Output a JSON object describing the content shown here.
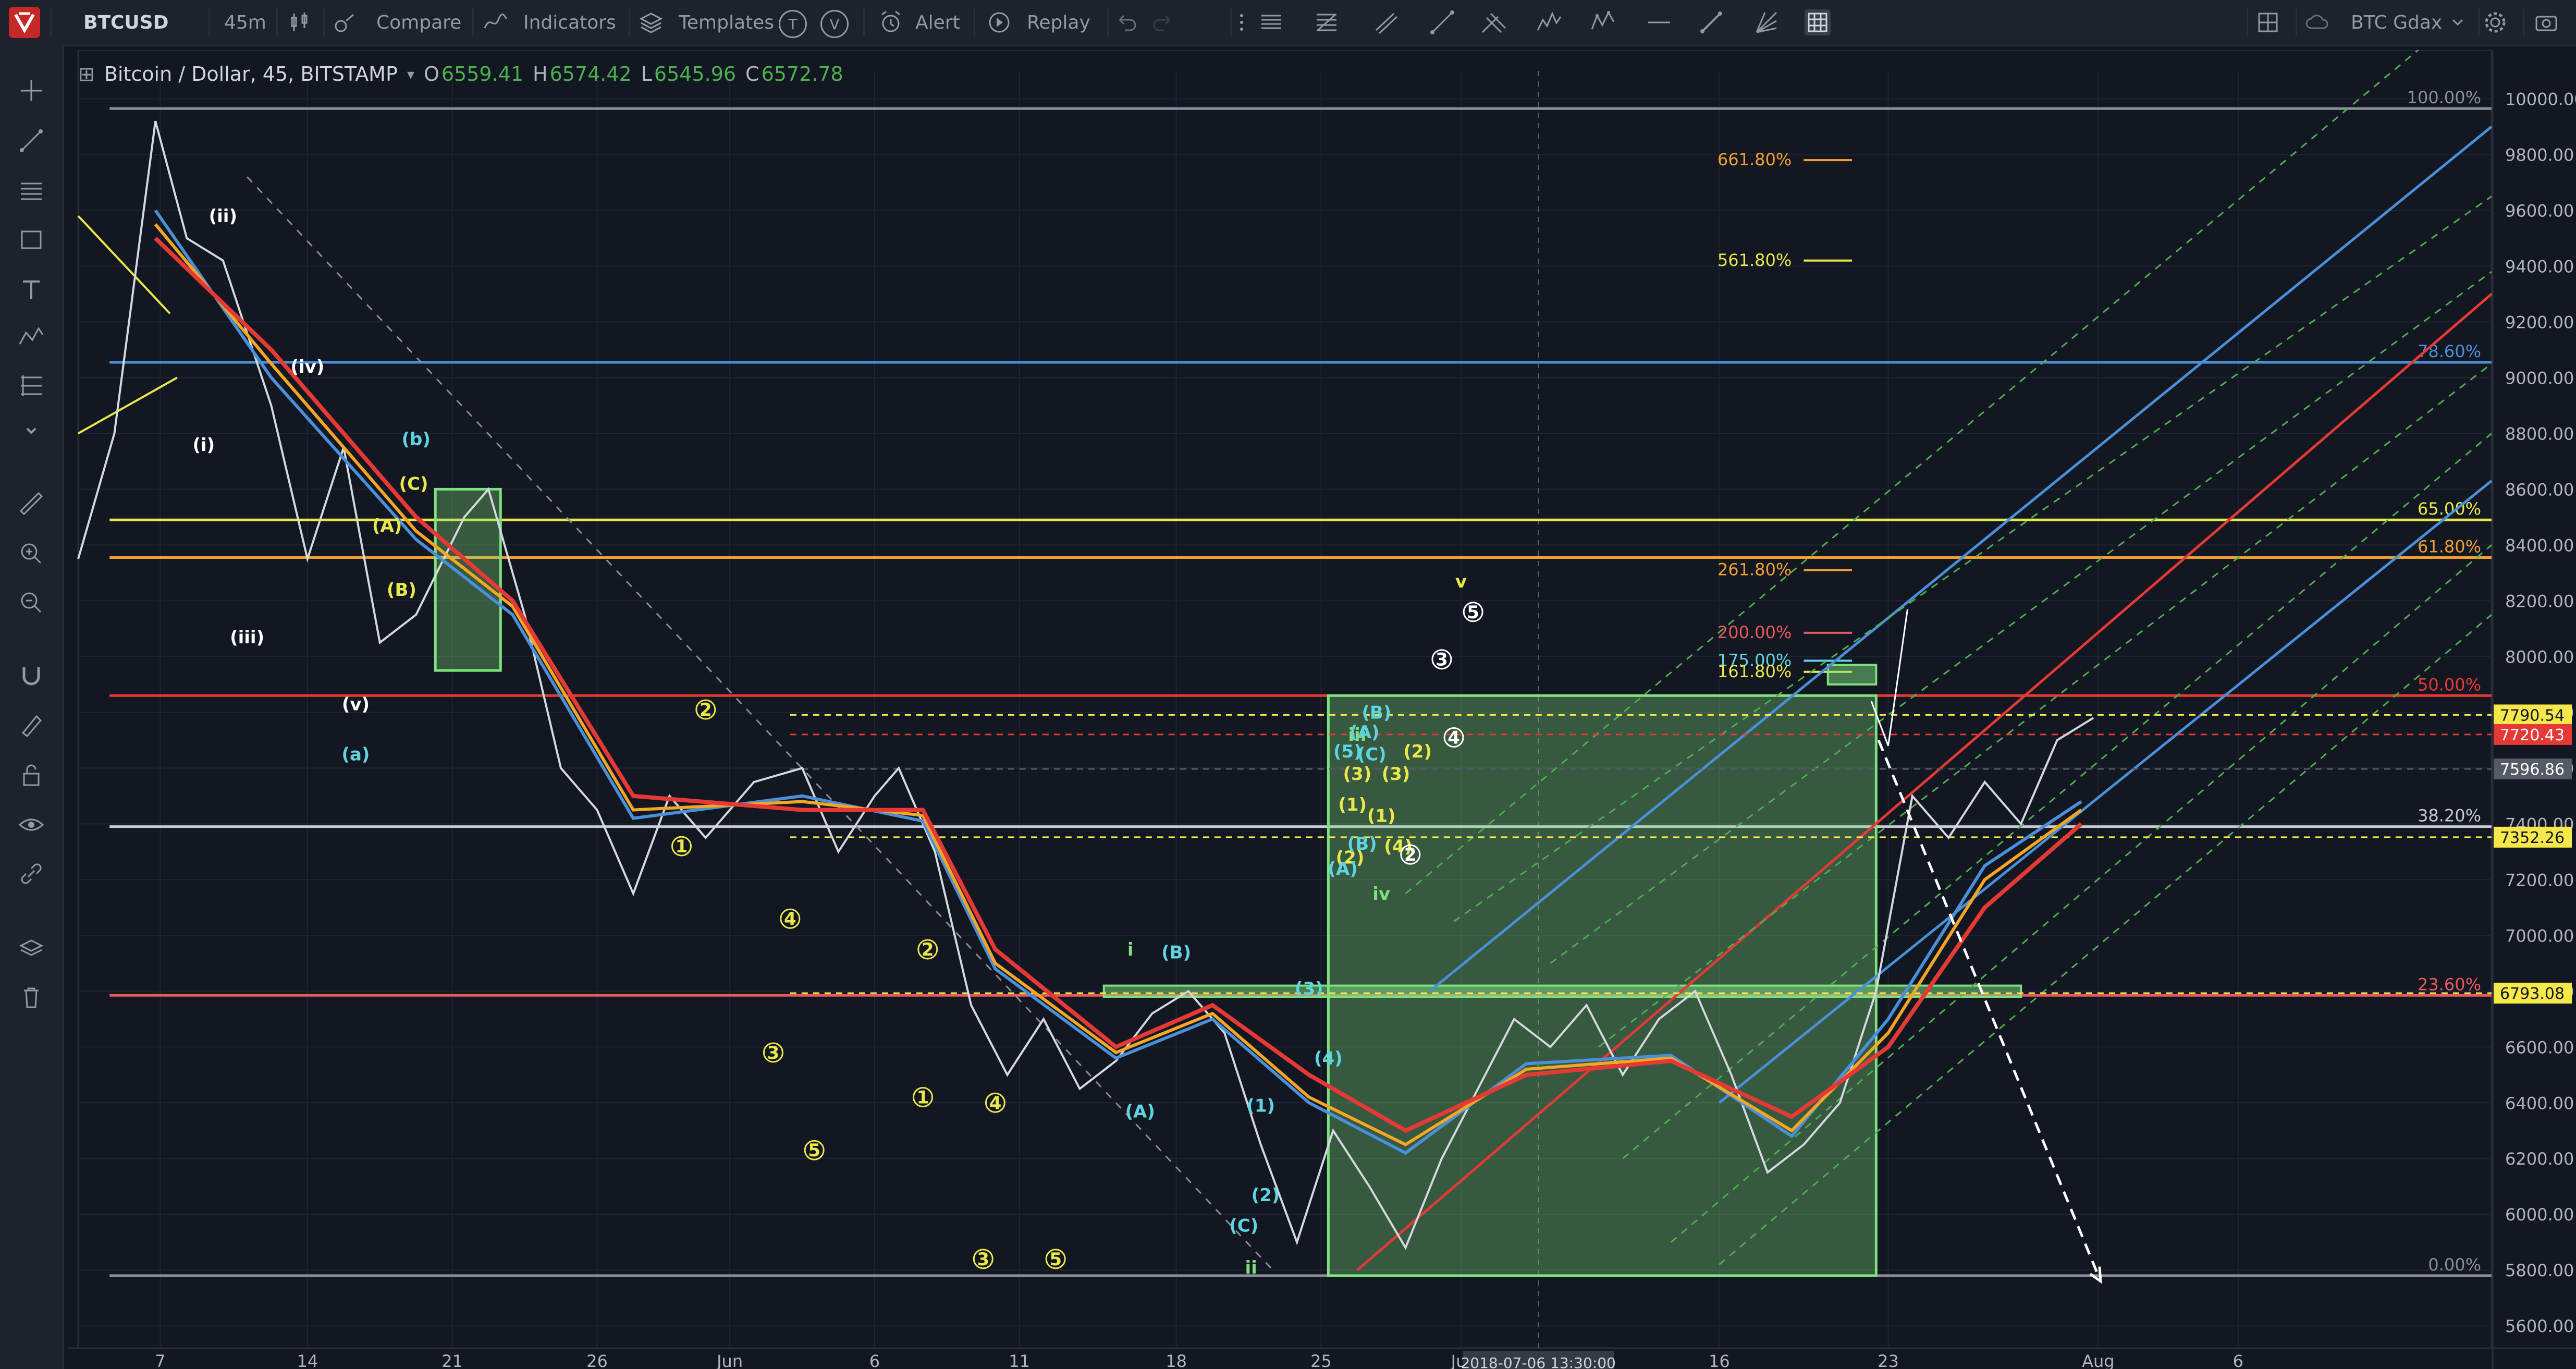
{
  "toolbar": {
    "symbol": "BTCUSD",
    "interval": "45m",
    "compare": "Compare",
    "indicators": "Indicators",
    "templates": "Templates",
    "templates_badge_t": "T",
    "templates_badge_v": "V",
    "alert": "Alert",
    "replay": "Replay",
    "layout_name": "BTC Gdax"
  },
  "legend": {
    "title": "Bitcoin / Dollar, 45, BITSTAMP",
    "open_label": "O",
    "open": "6559.41",
    "high_label": "H",
    "high": "6574.42",
    "low_label": "L",
    "low": "6545.96",
    "close_label": "C",
    "close": "6572.78"
  },
  "colors": {
    "background": "#131722",
    "panel": "#1e222d",
    "candle": "#d5d8de",
    "ema_red": "#e53935",
    "ema_orange": "#f5a623",
    "ema_blue": "#4a90d9",
    "fib_yellow": "#e8e84a",
    "fib_orange": "#f0a030",
    "green_box": "#7ee07e",
    "teal_label": "#5fd3e0",
    "price_tag_yellow": "#f7e84a"
  },
  "chart_data": {
    "type": "line",
    "title": "Bitcoin / Dollar, 45, BITSTAMP",
    "x_ticks": [
      "7",
      "14",
      "21",
      "26",
      "Jun",
      "6",
      "11",
      "18",
      "25",
      "Jul",
      "16",
      "23",
      "Aug",
      "6"
    ],
    "crosshair_time": "2018-07-06 13:30:00",
    "y_ticks": [
      "10000.00",
      "9800.00",
      "9600.00",
      "9400.00",
      "9200.00",
      "9000.00",
      "8800.00",
      "8600.00",
      "8400.00",
      "8200.00",
      "8000.00",
      "7800.00",
      "7600.00",
      "7400.00",
      "7200.00",
      "7000.00",
      "6800.00",
      "6600.00",
      "6400.00",
      "6200.00",
      "6000.00",
      "5800.00",
      "5600.00"
    ],
    "ylim": [
      5520,
      10100
    ],
    "price_tags": [
      {
        "label": "7790.54",
        "value": 7790.54,
        "color": "#f7e84a"
      },
      {
        "label": "7720.43",
        "value": 7720.43,
        "color": "#e53935"
      },
      {
        "label": "7596.86",
        "value": 7596.86,
        "color": "#555a66"
      },
      {
        "label": "7352.26",
        "value": 7352.26,
        "color": "#f7e84a"
      },
      {
        "label": "6793.08",
        "value": 6793.08,
        "color": "#f7e84a"
      }
    ],
    "fib_levels": [
      {
        "label": "100.00%",
        "value": 9965,
        "color": "#8a8e99"
      },
      {
        "label": "78.60%",
        "value": 9055,
        "color": "#4a90d9"
      },
      {
        "label": "65.00%",
        "value": 8490,
        "color": "#e8e84a"
      },
      {
        "label": "61.80%",
        "value": 8355,
        "color": "#f0a030"
      },
      {
        "label": "50.00%",
        "value": 7860,
        "color": "#e53935"
      },
      {
        "label": "38.20%",
        "value": 7390,
        "color": "#c8cad0"
      },
      {
        "label": "23.60%",
        "value": 6785,
        "color": "#e55a5a"
      },
      {
        "label": "0.00%",
        "value": 5780,
        "color": "#8a8e99"
      }
    ],
    "extension_levels": [
      {
        "label": "661.80%",
        "value": 9780,
        "color": "#f0a030"
      },
      {
        "label": "561.80%",
        "value": 9420,
        "color": "#e8e84a"
      },
      {
        "label": "261.80%",
        "value": 8310,
        "color": "#f0a030"
      },
      {
        "label": "200.00%",
        "value": 8085,
        "color": "#e55a5a"
      },
      {
        "label": "175.00%",
        "value": 7985,
        "color": "#5fd3e0"
      },
      {
        "label": "161.80%",
        "value": 7945,
        "color": "#e8e84a"
      }
    ],
    "price_path": [
      {
        "x": 0.0,
        "y": 8350
      },
      {
        "x": 1.5,
        "y": 8800
      },
      {
        "x": 3.2,
        "y": 9920
      },
      {
        "x": 4.5,
        "y": 9500
      },
      {
        "x": 6.0,
        "y": 9420
      },
      {
        "x": 8.0,
        "y": 8900
      },
      {
        "x": 9.5,
        "y": 8350
      },
      {
        "x": 11.0,
        "y": 8750
      },
      {
        "x": 12.5,
        "y": 8050
      },
      {
        "x": 14.0,
        "y": 8150
      },
      {
        "x": 16.0,
        "y": 8500
      },
      {
        "x": 17.0,
        "y": 8600
      },
      {
        "x": 18.5,
        "y": 8150
      },
      {
        "x": 20.0,
        "y": 7600
      },
      {
        "x": 21.5,
        "y": 7450
      },
      {
        "x": 23.0,
        "y": 7150
      },
      {
        "x": 24.5,
        "y": 7500
      },
      {
        "x": 26.0,
        "y": 7350
      },
      {
        "x": 28.0,
        "y": 7550
      },
      {
        "x": 30.0,
        "y": 7600
      },
      {
        "x": 31.5,
        "y": 7300
      },
      {
        "x": 33.0,
        "y": 7500
      },
      {
        "x": 34.0,
        "y": 7600
      },
      {
        "x": 35.5,
        "y": 7300
      },
      {
        "x": 37.0,
        "y": 6750
      },
      {
        "x": 38.5,
        "y": 6500
      },
      {
        "x": 40.0,
        "y": 6700
      },
      {
        "x": 41.5,
        "y": 6450
      },
      {
        "x": 43.0,
        "y": 6550
      },
      {
        "x": 44.5,
        "y": 6720
      },
      {
        "x": 46.0,
        "y": 6800
      },
      {
        "x": 47.5,
        "y": 6650
      },
      {
        "x": 49.0,
        "y": 6250
      },
      {
        "x": 50.5,
        "y": 5900
      },
      {
        "x": 52.0,
        "y": 6300
      },
      {
        "x": 53.5,
        "y": 6100
      },
      {
        "x": 55.0,
        "y": 5880
      },
      {
        "x": 56.5,
        "y": 6200
      },
      {
        "x": 58.0,
        "y": 6450
      },
      {
        "x": 59.5,
        "y": 6700
      },
      {
        "x": 61.0,
        "y": 6600
      },
      {
        "x": 62.5,
        "y": 6750
      },
      {
        "x": 64.0,
        "y": 6500
      },
      {
        "x": 65.5,
        "y": 6700
      },
      {
        "x": 67.0,
        "y": 6800
      },
      {
        "x": 68.5,
        "y": 6500
      },
      {
        "x": 70.0,
        "y": 6150
      },
      {
        "x": 71.5,
        "y": 6250
      },
      {
        "x": 73.0,
        "y": 6400
      },
      {
        "x": 74.5,
        "y": 6800
      },
      {
        "x": 76.0,
        "y": 7500
      },
      {
        "x": 77.5,
        "y": 7350
      },
      {
        "x": 79.0,
        "y": 7550
      },
      {
        "x": 80.5,
        "y": 7400
      },
      {
        "x": 82.0,
        "y": 7700
      },
      {
        "x": 83.5,
        "y": 7780
      }
    ],
    "ema_red": [
      {
        "x": 3.2,
        "y": 9500
      },
      {
        "x": 8.0,
        "y": 9100
      },
      {
        "x": 14.0,
        "y": 8500
      },
      {
        "x": 18.0,
        "y": 8200
      },
      {
        "x": 23.0,
        "y": 7500
      },
      {
        "x": 30.0,
        "y": 7450
      },
      {
        "x": 35.0,
        "y": 7450
      },
      {
        "x": 38.0,
        "y": 6950
      },
      {
        "x": 43.0,
        "y": 6600
      },
      {
        "x": 47.0,
        "y": 6750
      },
      {
        "x": 51.0,
        "y": 6500
      },
      {
        "x": 55.0,
        "y": 6300
      },
      {
        "x": 60.0,
        "y": 6500
      },
      {
        "x": 66.0,
        "y": 6550
      },
      {
        "x": 71.0,
        "y": 6350
      },
      {
        "x": 75.0,
        "y": 6600
      },
      {
        "x": 79.0,
        "y": 7100
      },
      {
        "x": 83.0,
        "y": 7400
      }
    ],
    "ema_orange": [
      {
        "x": 3.2,
        "y": 9550
      },
      {
        "x": 8.0,
        "y": 9050
      },
      {
        "x": 14.0,
        "y": 8450
      },
      {
        "x": 18.0,
        "y": 8180
      },
      {
        "x": 23.0,
        "y": 7450
      },
      {
        "x": 30.0,
        "y": 7480
      },
      {
        "x": 35.0,
        "y": 7430
      },
      {
        "x": 38.0,
        "y": 6900
      },
      {
        "x": 43.0,
        "y": 6580
      },
      {
        "x": 47.0,
        "y": 6720
      },
      {
        "x": 51.0,
        "y": 6420
      },
      {
        "x": 55.0,
        "y": 6250
      },
      {
        "x": 60.0,
        "y": 6520
      },
      {
        "x": 66.0,
        "y": 6560
      },
      {
        "x": 71.0,
        "y": 6300
      },
      {
        "x": 75.0,
        "y": 6650
      },
      {
        "x": 79.0,
        "y": 7200
      },
      {
        "x": 83.0,
        "y": 7450
      }
    ],
    "ema_blue": [
      {
        "x": 3.2,
        "y": 9600
      },
      {
        "x": 8.0,
        "y": 9000
      },
      {
        "x": 14.0,
        "y": 8420
      },
      {
        "x": 18.0,
        "y": 8150
      },
      {
        "x": 23.0,
        "y": 7420
      },
      {
        "x": 30.0,
        "y": 7500
      },
      {
        "x": 35.0,
        "y": 7410
      },
      {
        "x": 38.0,
        "y": 6880
      },
      {
        "x": 43.0,
        "y": 6560
      },
      {
        "x": 47.0,
        "y": 6700
      },
      {
        "x": 51.0,
        "y": 6400
      },
      {
        "x": 55.0,
        "y": 6220
      },
      {
        "x": 60.0,
        "y": 6540
      },
      {
        "x": 66.0,
        "y": 6570
      },
      {
        "x": 71.0,
        "y": 6280
      },
      {
        "x": 75.0,
        "y": 6700
      },
      {
        "x": 79.0,
        "y": 7250
      },
      {
        "x": 83.0,
        "y": 7480
      }
    ],
    "wave_labels": [
      {
        "text": "(ii)",
        "x": 6.0,
        "y": 9580,
        "color": "#ffffff"
      },
      {
        "text": "(iv)",
        "x": 9.5,
        "y": 9040,
        "color": "#ffffff"
      },
      {
        "text": "(i)",
        "x": 5.2,
        "y": 8760,
        "color": "#ffffff"
      },
      {
        "text": "(iii)",
        "x": 7.0,
        "y": 8070,
        "color": "#ffffff"
      },
      {
        "text": "(v)",
        "x": 11.5,
        "y": 7830,
        "color": "#ffffff"
      },
      {
        "text": "(b)",
        "x": 14.0,
        "y": 8780,
        "color": "#5fd3e0"
      },
      {
        "text": "(a)",
        "x": 11.5,
        "y": 7650,
        "color": "#5fd3e0"
      },
      {
        "text": "(C)",
        "x": 13.9,
        "y": 8620,
        "color": "#e8e84a"
      },
      {
        "text": "(A)",
        "x": 12.8,
        "y": 8470,
        "color": "#e8e84a"
      },
      {
        "text": "(B)",
        "x": 13.4,
        "y": 8240,
        "color": "#e8e84a"
      },
      {
        "text": "2",
        "x": 26.0,
        "y": 7810,
        "color": "#e8e84a"
      },
      {
        "text": "1",
        "x": 25.0,
        "y": 7320,
        "color": "#e8e84a"
      },
      {
        "text": "4",
        "x": 29.5,
        "y": 7060,
        "color": "#e8e84a"
      },
      {
        "text": "3",
        "x": 28.8,
        "y": 6580,
        "color": "#e8e84a"
      },
      {
        "text": "5",
        "x": 30.5,
        "y": 6230,
        "color": "#e8e84a"
      },
      {
        "text": "2",
        "x": 35.2,
        "y": 6950,
        "color": "#e8e84a"
      },
      {
        "text": "1",
        "x": 35.0,
        "y": 6420,
        "color": "#e8e84a"
      },
      {
        "text": "4",
        "x": 38.0,
        "y": 6400,
        "color": "#e8e84a"
      },
      {
        "text": "3",
        "x": 37.5,
        "y": 5840,
        "color": "#e8e84a"
      },
      {
        "text": "5",
        "x": 40.5,
        "y": 5840,
        "color": "#e8e84a"
      },
      {
        "text": "i",
        "x": 43.6,
        "y": 6950,
        "color": "#7ee07e"
      },
      {
        "text": "(B)",
        "x": 45.5,
        "y": 6940,
        "color": "#5fd3e0"
      },
      {
        "text": "(A)",
        "x": 44.0,
        "y": 6370,
        "color": "#5fd3e0"
      },
      {
        "text": "(1)",
        "x": 49.0,
        "y": 6390,
        "color": "#5fd3e0"
      },
      {
        "text": "(2)",
        "x": 49.2,
        "y": 6070,
        "color": "#5fd3e0"
      },
      {
        "text": "(C)",
        "x": 48.3,
        "y": 5960,
        "color": "#5fd3e0"
      },
      {
        "text": "ii",
        "x": 48.6,
        "y": 5810,
        "color": "#7ee07e"
      },
      {
        "text": "(3)",
        "x": 51.0,
        "y": 6810,
        "color": "#5fd3e0"
      },
      {
        "text": "(4)",
        "x": 51.8,
        "y": 6560,
        "color": "#5fd3e0"
      },
      {
        "text": "iii",
        "x": 53.0,
        "y": 7720,
        "color": "#7ee07e"
      },
      {
        "text": "iv",
        "x": 54.0,
        "y": 7150,
        "color": "#7ee07e"
      },
      {
        "text": "v",
        "x": 57.3,
        "y": 8270,
        "color": "#e8e84a"
      },
      {
        "text": "5",
        "x": 57.8,
        "y": 8160,
        "color": "#ffffff"
      },
      {
        "text": "4",
        "x": 57.0,
        "y": 7710,
        "color": "#ffffff"
      },
      {
        "text": "3",
        "x": 56.5,
        "y": 7990,
        "color": "#ffffff"
      },
      {
        "text": "(B)",
        "x": 53.8,
        "y": 7800,
        "color": "#5fd3e0"
      },
      {
        "text": "(A)",
        "x": 53.3,
        "y": 7730,
        "color": "#5fd3e0"
      },
      {
        "text": "(C)",
        "x": 53.6,
        "y": 7650,
        "color": "#5fd3e0"
      },
      {
        "text": "(5)",
        "x": 52.6,
        "y": 7660,
        "color": "#5fd3e0"
      },
      {
        "text": "(3)",
        "x": 53.0,
        "y": 7580,
        "color": "#e8e84a"
      },
      {
        "text": "(1)",
        "x": 52.8,
        "y": 7470,
        "color": "#e8e84a"
      },
      {
        "text": "(2)",
        "x": 52.7,
        "y": 7280,
        "color": "#e8e84a"
      },
      {
        "text": "(A)",
        "x": 52.4,
        "y": 7240,
        "color": "#5fd3e0"
      },
      {
        "text": "(B)",
        "x": 53.2,
        "y": 7330,
        "color": "#5fd3e0"
      },
      {
        "text": "(1)",
        "x": 54.0,
        "y": 7430,
        "color": "#e8e84a"
      },
      {
        "text": "(3)",
        "x": 54.6,
        "y": 7580,
        "color": "#e8e84a"
      },
      {
        "text": "(4)",
        "x": 54.7,
        "y": 7320,
        "color": "#e8e84a"
      },
      {
        "text": "2",
        "x": 55.2,
        "y": 7290,
        "color": "#ffffff"
      },
      {
        "text": "(2)",
        "x": 55.5,
        "y": 7660,
        "color": "#e8e84a"
      }
    ]
  }
}
